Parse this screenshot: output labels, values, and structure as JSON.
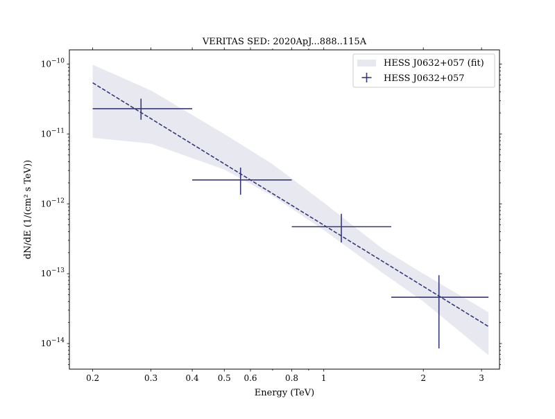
{
  "chart_data": {
    "type": "scatter",
    "title": "VERITAS SED: 2020ApJ...888..115A",
    "xlabel": "Energy (TeV)",
    "ylabel": "dN/dE (1/(cm² s TeV))",
    "xscale": "log",
    "yscale": "log",
    "xlim": [
      0.17,
      3.4
    ],
    "ylim": [
      4.3e-15,
      1.6e-10
    ],
    "x_ticks": [
      {
        "value": 0.2,
        "label": "0.2"
      },
      {
        "value": 0.3,
        "label": "0.3"
      },
      {
        "value": 0.4,
        "label": "0.4"
      },
      {
        "value": 0.5,
        "label": "0.5"
      },
      {
        "value": 0.6,
        "label": "0.6"
      },
      {
        "value": 0.8,
        "label": "0.8"
      },
      {
        "value": 1,
        "label": "1"
      },
      {
        "value": 2,
        "label": "2"
      },
      {
        "value": 3,
        "label": "3"
      }
    ],
    "y_ticks": [
      {
        "value": 1e-14,
        "base": "10",
        "exp": "−14"
      },
      {
        "value": 1e-13,
        "base": "10",
        "exp": "−13"
      },
      {
        "value": 1e-12,
        "base": "10",
        "exp": "−12"
      },
      {
        "value": 1e-11,
        "base": "10",
        "exp": "−11"
      },
      {
        "value": 1e-10,
        "base": "10",
        "exp": "−10"
      }
    ],
    "legend": {
      "placement": "upper right",
      "entries": [
        "HESS J0632+057 (fit)",
        "HESS J0632+057"
      ]
    },
    "series": [
      {
        "name": "HESS J0632+057",
        "type": "errorbar",
        "color": "#36367a",
        "points": [
          {
            "x": 0.28,
            "y": 2.3e-11,
            "xerr": [
              0.2,
              0.4
            ],
            "yerr": [
              1.6e-11,
              3.2e-11
            ]
          },
          {
            "x": 0.56,
            "y": 2.2e-12,
            "xerr": [
              0.4,
              0.8
            ],
            "yerr": [
              1.35e-12,
              3.3e-12
            ]
          },
          {
            "x": 1.13,
            "y": 4.7e-13,
            "xerr": [
              0.8,
              1.6
            ],
            "yerr": [
              2.8e-13,
              7.2e-13
            ]
          },
          {
            "x": 2.23,
            "y": 4.6e-14,
            "xerr": [
              1.6,
              3.15
            ],
            "yerr": [
              8.5e-15,
              9.5e-14
            ]
          }
        ]
      },
      {
        "name": "HESS J0632+057 (fit)",
        "type": "band",
        "color": "#36367a",
        "fill": "#e8e8f0",
        "line": [
          {
            "x": 0.2,
            "y": 5.4e-11
          },
          {
            "x": 3.15,
            "y": 1.75e-14
          }
        ],
        "band_upper": [
          {
            "x": 0.2,
            "y": 9.8e-11
          },
          {
            "x": 0.3,
            "y": 4.2e-11
          },
          {
            "x": 0.5,
            "y": 1e-11
          },
          {
            "x": 0.7,
            "y": 3.7e-12
          },
          {
            "x": 1.0,
            "y": 1.04e-12
          },
          {
            "x": 1.5,
            "y": 2.3e-13
          },
          {
            "x": 2.0,
            "y": 1e-13
          },
          {
            "x": 3.15,
            "y": 2.8e-14
          }
        ],
        "band_lower": [
          {
            "x": 0.2,
            "y": 8.8e-12
          },
          {
            "x": 0.3,
            "y": 7.3e-12
          },
          {
            "x": 0.5,
            "y": 3.1e-12
          },
          {
            "x": 0.7,
            "y": 1.3e-12
          },
          {
            "x": 1.0,
            "y": 4.2e-13
          },
          {
            "x": 1.5,
            "y": 1.04e-13
          },
          {
            "x": 2.0,
            "y": 4e-14
          },
          {
            "x": 3.15,
            "y": 6.8e-15
          }
        ]
      }
    ]
  }
}
